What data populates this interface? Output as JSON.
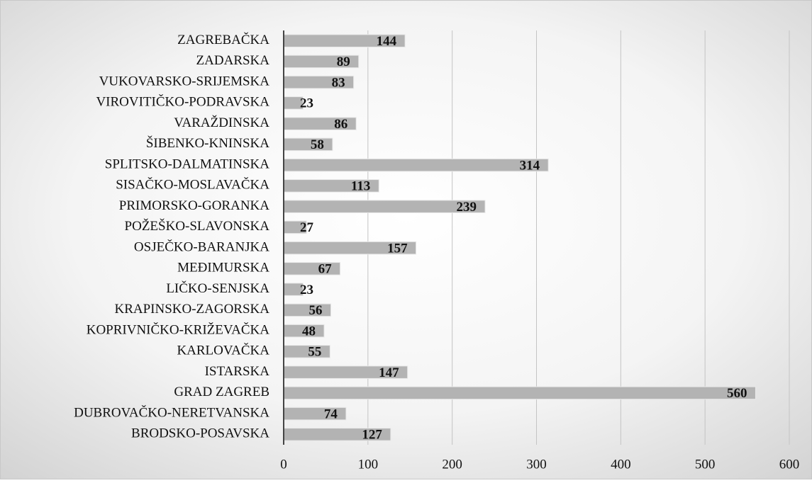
{
  "chart_data": {
    "type": "bar",
    "orientation": "horizontal",
    "categories": [
      "ZAGREBAČKA",
      "ZADARSKA",
      "VUKOVARSKO-SRIJEMSKA",
      "VIROVITIČKO-PODRAVSKA",
      "VARAŽDINSKA",
      "ŠIBENKO-KNINSKA",
      "SPLITSKO-DALMATINSKA",
      "SISAČKO-MOSLAVAČKA",
      "PRIMORSKO-GORANKA",
      "POŽEŠKO-SLAVONSKA",
      "OSJEČKO-BARANJKA",
      "MEĐIMURSKA",
      "LIČKO-SENJSKA",
      "KRAPINSKO-ZAGORSKA",
      "KOPRIVNIČKO-KRIŽEVAČKA",
      "KARLOVAČKA",
      "ISTARSKA",
      "GRAD ZAGREB",
      "DUBROVAČKO-NERETVANSKA",
      "BRODSKO-POSAVSKA"
    ],
    "values": [
      144,
      89,
      83,
      23,
      86,
      58,
      314,
      113,
      239,
      27,
      157,
      67,
      23,
      56,
      48,
      55,
      147,
      560,
      74,
      127
    ],
    "color": "#b3b3b3",
    "xlim": [
      0,
      600
    ],
    "xticks": [
      0,
      100,
      200,
      300,
      400,
      500,
      600
    ],
    "grid": true
  }
}
